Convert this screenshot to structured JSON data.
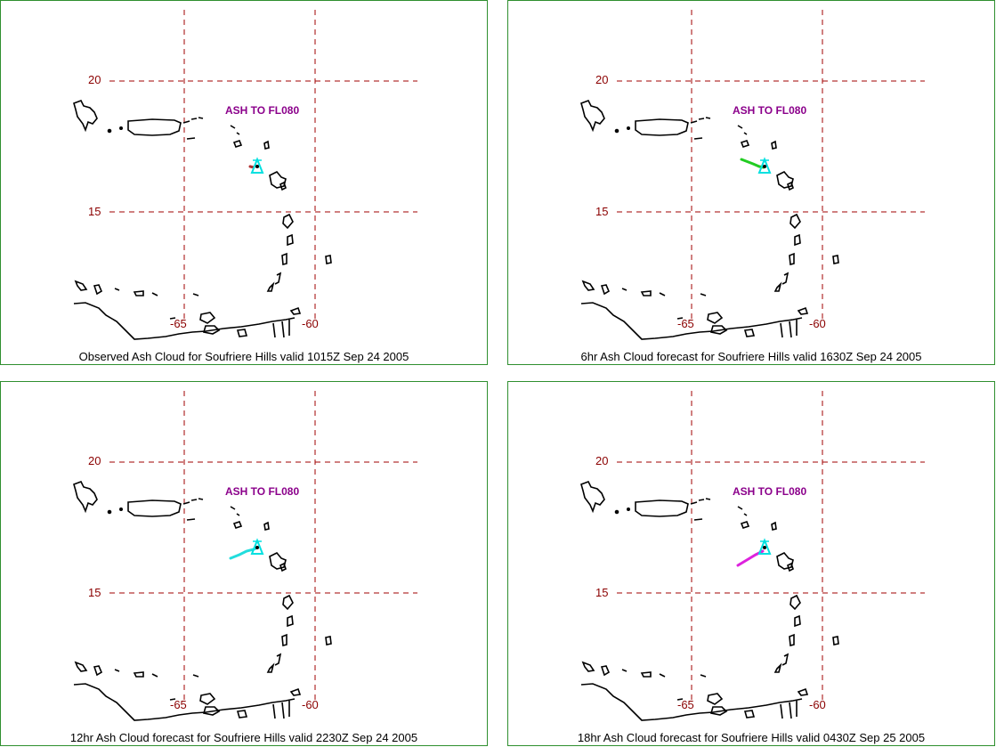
{
  "colors": {
    "frame": "#2f8f2f",
    "grid": "#a00000",
    "grid_label": "#8b0000",
    "coast": "#000000",
    "ash_label": "#8b008b",
    "volcano_marker": "#00e0e0"
  },
  "grid": {
    "latitude_labels": [
      "20",
      "15"
    ],
    "longitude_labels": [
      "-65",
      "-60"
    ]
  },
  "panels": [
    {
      "id": "observed",
      "ash_label": "ASH TO FL080",
      "caption": "Observed Ash Cloud for Soufriere  Hills valid 1015Z Sep 24 2005",
      "ash_color": "#b03030",
      "ash_extent": "tiny"
    },
    {
      "id": "6hr",
      "ash_label": "ASH TO FL080",
      "caption": "6hr Ash Cloud forecast for Soufriere  Hills valid 1630Z Sep 24 2005",
      "ash_color": "#22cc22",
      "ash_extent": "short"
    },
    {
      "id": "12hr",
      "ash_label": "ASH TO FL080",
      "caption": "12hr Ash Cloud forecast for Soufriere  Hills valid 2230Z Sep 24 2005",
      "ash_color": "#22dddd",
      "ash_extent": "medium"
    },
    {
      "id": "18hr",
      "ash_label": "ASH TO FL080",
      "caption": "18hr Ash Cloud forecast for Soufriere  Hills valid 0430Z Sep 25 2005",
      "ash_color": "#dd22dd",
      "ash_extent": "long"
    }
  ]
}
